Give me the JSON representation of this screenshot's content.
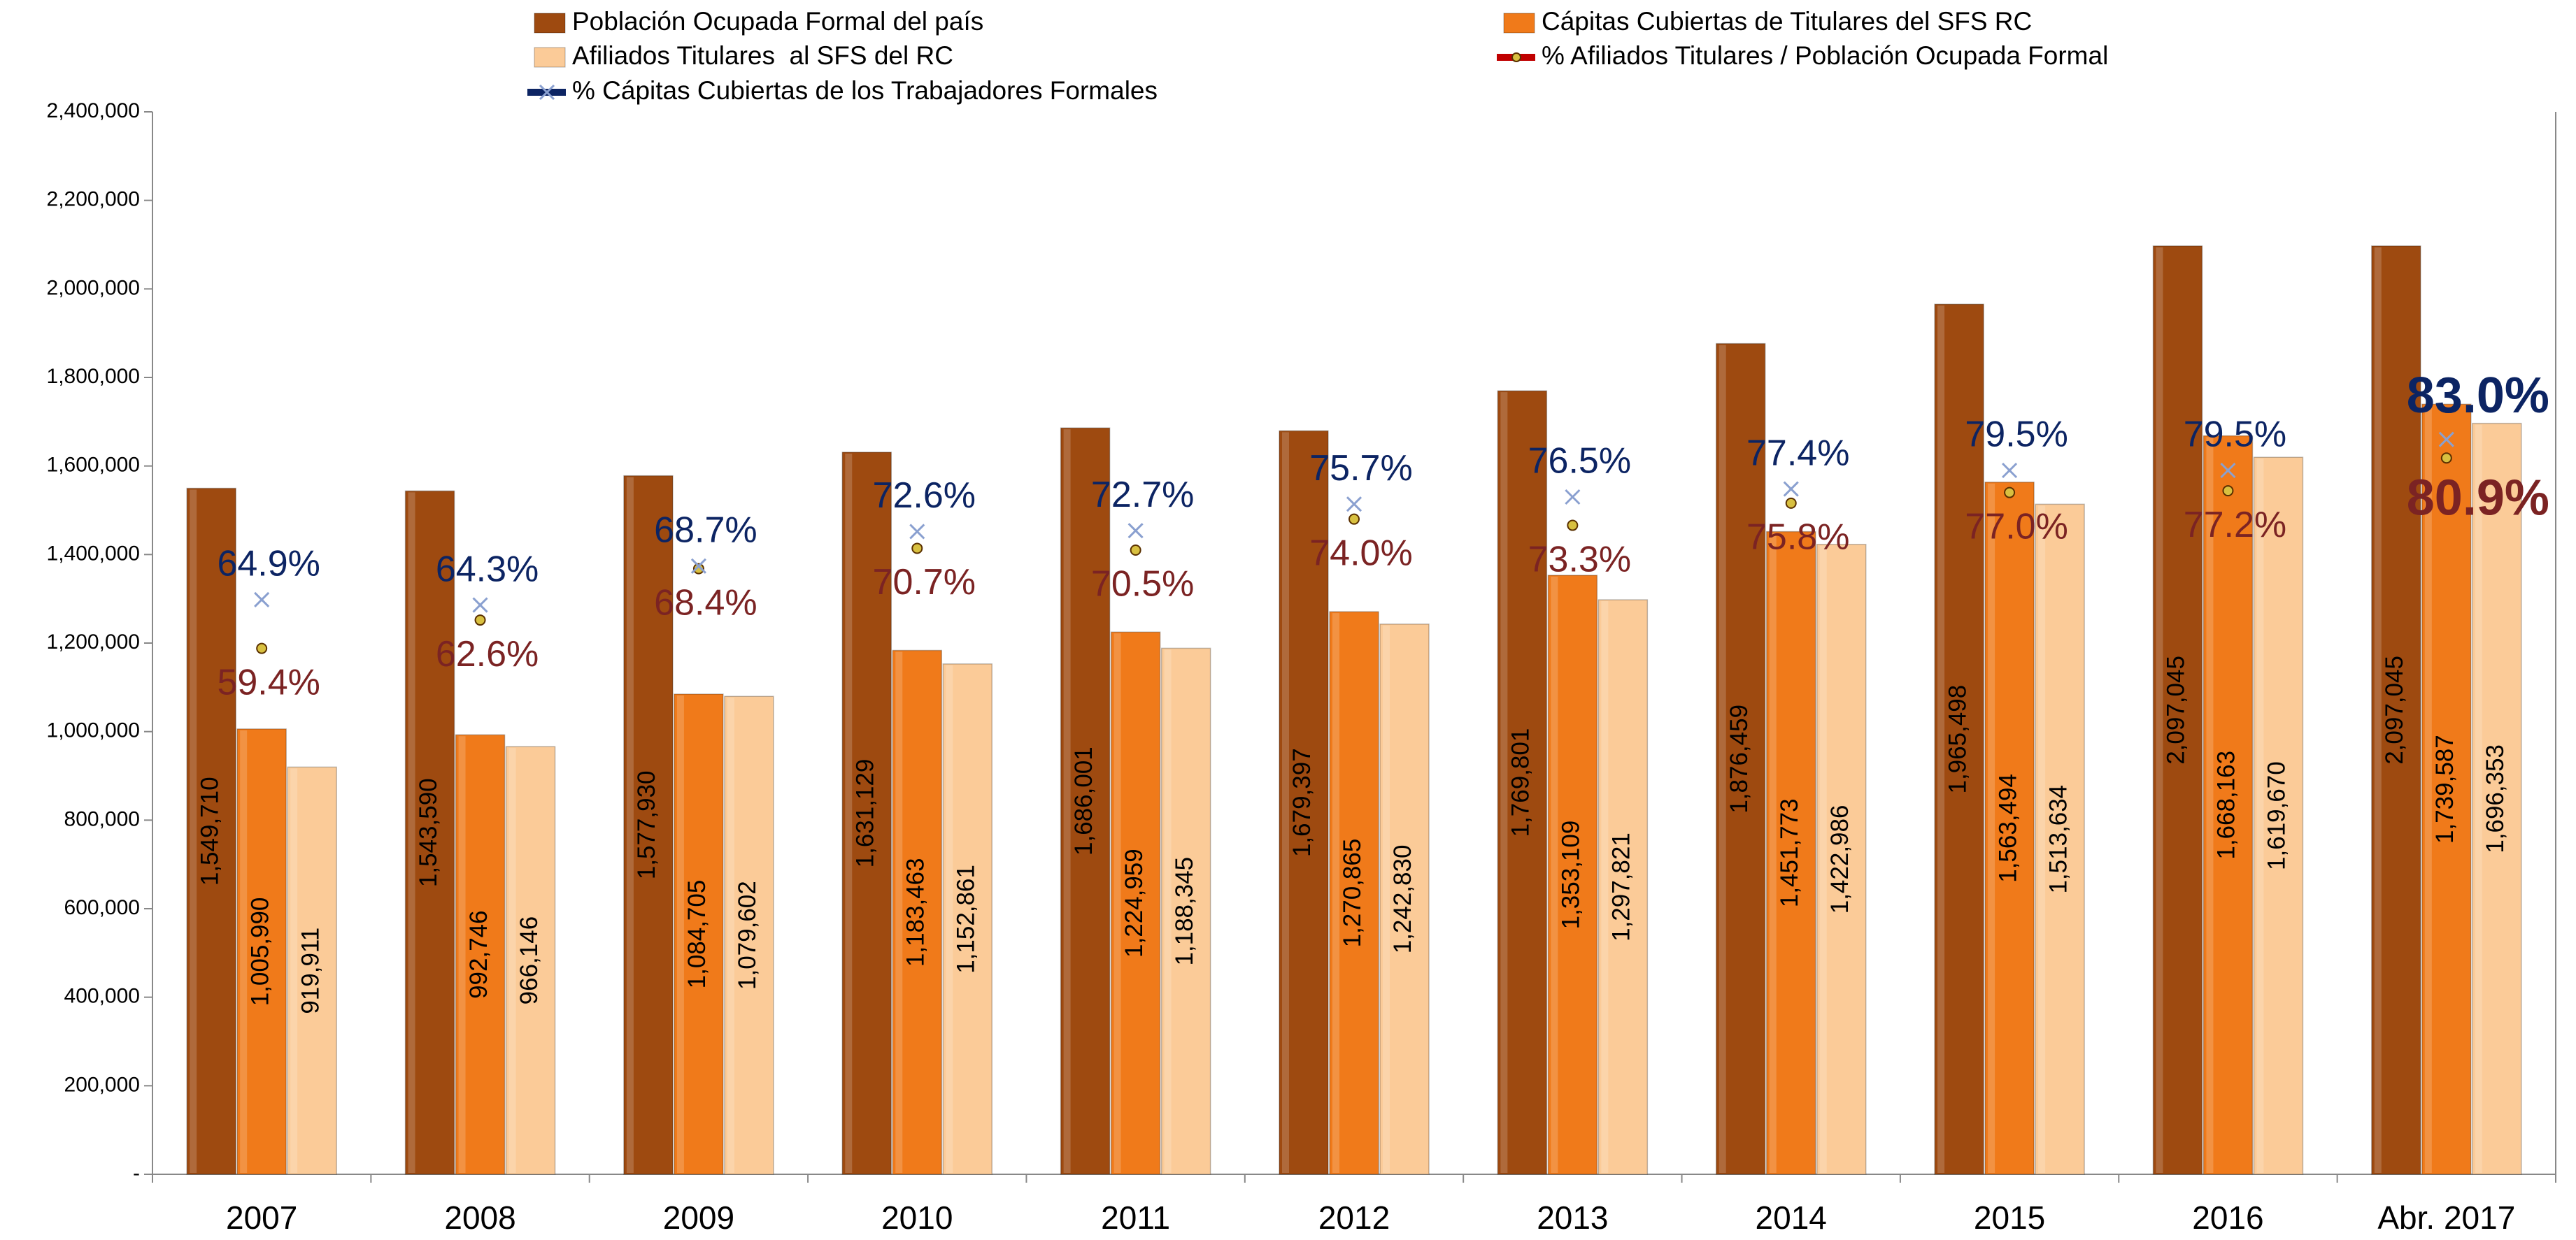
{
  "chart_data": {
    "type": "bar",
    "categories": [
      "2007",
      "2008",
      "2009",
      "2010",
      "2011",
      "2012",
      "2013",
      "2014",
      "2015",
      "2016",
      "Abr. 2017"
    ],
    "series": [
      {
        "name": "Población Ocupada Formal del país",
        "color": "#9E4A10",
        "values": [
          1549710,
          1543590,
          1577930,
          1631129,
          1686001,
          1679397,
          1769801,
          1876459,
          1965498,
          2097045,
          2097045
        ],
        "value_labels": [
          "1,549,710",
          "1,543,590",
          "1,577,930",
          "1,631,129",
          "1,686,001",
          "1,679,397",
          "1,769,801",
          "1,876,459",
          "1,965,498",
          "2,097,045",
          "2,097,045"
        ]
      },
      {
        "name": "Cápitas Cubiertas de Titulares del SFS RC",
        "color": "#F07A1A",
        "values": [
          1005990,
          992746,
          1084705,
          1183463,
          1224959,
          1270865,
          1353109,
          1451773,
          1563494,
          1668163,
          1739587
        ],
        "value_labels": [
          "1,005,990",
          "992,746",
          "1,084,705",
          "1,183,463",
          "1,224,959",
          "1,270,865",
          "1,353,109",
          "1,451,773",
          "1,563,494",
          "1,668,163",
          "1,739,587"
        ]
      },
      {
        "name": "Afiliados Titulares  al SFS del RC",
        "color": "#FBCB98",
        "values": [
          919911,
          966146,
          1079602,
          1152861,
          1188345,
          1242830,
          1297821,
          1422986,
          1513634,
          1619670,
          1696353
        ],
        "value_labels": [
          "919,911",
          "966,146",
          "1,079,602",
          "1,152,861",
          "1,188,345",
          "1,242,830",
          "1,297,821",
          "1,422,986",
          "1,513,634",
          "1,619,670",
          "1,696,353"
        ]
      },
      {
        "name": "% Afiliados Titulares / Población Ocupada Formal",
        "color": "#C00000",
        "type": "line",
        "axis": "y2",
        "values": [
          59.4,
          62.6,
          68.4,
          70.7,
          70.5,
          74.0,
          73.3,
          75.8,
          77.0,
          77.2,
          80.9
        ],
        "value_labels": [
          "59.4%",
          "62.6%",
          "68.4%",
          "70.7%",
          "70.5%",
          "74.0%",
          "73.3%",
          "75.8%",
          "77.0%",
          "77.2%",
          "80.9%"
        ]
      },
      {
        "name": "% Cápitas Cubiertas de los Trabajadores Formales",
        "color": "#0C2463",
        "type": "line",
        "axis": "y2",
        "values": [
          64.9,
          64.3,
          68.7,
          72.6,
          72.7,
          75.7,
          76.5,
          77.4,
          79.5,
          79.5,
          83.0
        ],
        "value_labels": [
          "64.9%",
          "64.3%",
          "68.7%",
          "72.6%",
          "72.7%",
          "75.7%",
          "76.5%",
          "77.4%",
          "79.5%",
          "79.5%",
          "83.0%"
        ]
      }
    ],
    "ylim": [
      0,
      2400000
    ],
    "yticks": [
      {
        "value": 0,
        "label": "-"
      },
      {
        "value": 200000,
        "label": "200,000"
      },
      {
        "value": 400000,
        "label": "400,000"
      },
      {
        "value": 600000,
        "label": "600,000"
      },
      {
        "value": 800000,
        "label": "800,000"
      },
      {
        "value": 1000000,
        "label": "1,000,000"
      },
      {
        "value": 1200000,
        "label": "1,200,000"
      },
      {
        "value": 1400000,
        "label": "1,400,000"
      },
      {
        "value": 1600000,
        "label": "1,600,000"
      },
      {
        "value": 1800000,
        "label": "1,800,000"
      },
      {
        "value": 2000000,
        "label": "2,000,000"
      },
      {
        "value": 2200000,
        "label": "2,200,000"
      },
      {
        "value": 2400000,
        "label": "2,400,000"
      }
    ],
    "y2lim": [
      0,
      120
    ],
    "grid": false
  }
}
